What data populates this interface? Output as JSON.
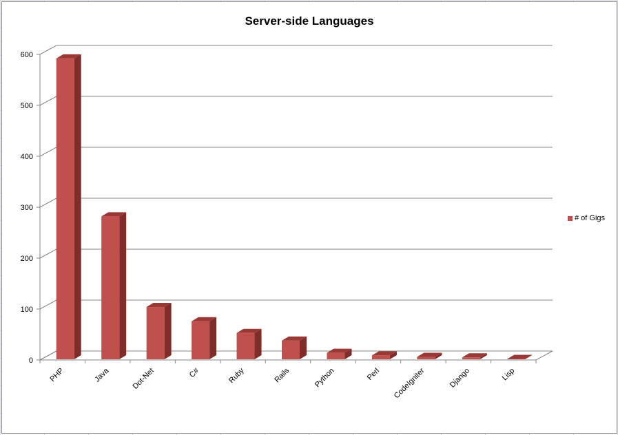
{
  "chart_data": {
    "type": "bar",
    "title": "Server-side Languages",
    "categories": [
      "PHP",
      "Java",
      "Dot-Net",
      "C#",
      "Ruby",
      "Rails",
      "Python",
      "Perl",
      "CodeIgniter",
      "Django",
      "Lisp"
    ],
    "series": [
      {
        "name": "# of Gigs",
        "values": [
          592,
          282,
          104,
          76,
          53,
          38,
          14,
          9,
          6,
          5,
          2
        ],
        "color": "#c0504d"
      }
    ],
    "y_ticks": [
      "0",
      "100",
      "200",
      "300",
      "400",
      "500",
      "600"
    ],
    "ylim": [
      0,
      600
    ],
    "grid": true,
    "three_d": true,
    "legend_position": "right"
  }
}
